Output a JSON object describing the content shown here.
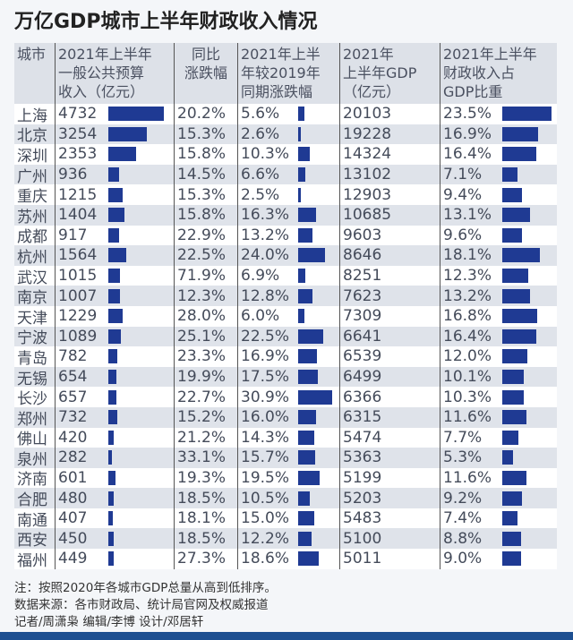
{
  "title": "万亿GDP城市上半年财政收入情况",
  "chart_data": {
    "type": "table",
    "title": "万亿GDP城市上半年财政收入情况",
    "columns": [
      "城市",
      "2021年上半年\n一般公共预算\n收入（亿元）",
      "同比\n涨跌幅",
      "2021年上半\n年较2019年\n同期涨跌幅",
      "2021年\n上半年GDP\n（亿元）",
      "2021年上半年\n财政收入占\nGDP比重"
    ],
    "rows": [
      {
        "city": "上海",
        "revenue": 4732,
        "yoy": "20.2%",
        "vs2019": 5.6,
        "gdp": 20103,
        "share": 23.5
      },
      {
        "city": "北京",
        "revenue": 3254,
        "yoy": "15.3%",
        "vs2019": 2.6,
        "gdp": 19228,
        "share": 16.9
      },
      {
        "city": "深圳",
        "revenue": 2353,
        "yoy": "15.8%",
        "vs2019": 10.3,
        "gdp": 14324,
        "share": 16.4
      },
      {
        "city": "广州",
        "revenue": 936,
        "yoy": "14.5%",
        "vs2019": 6.6,
        "gdp": 13102,
        "share": 7.1
      },
      {
        "city": "重庆",
        "revenue": 1215,
        "yoy": "15.3%",
        "vs2019": 2.5,
        "gdp": 12903,
        "share": 9.4
      },
      {
        "city": "苏州",
        "revenue": 1404,
        "yoy": "15.8%",
        "vs2019": 16.3,
        "gdp": 10685,
        "share": 13.1
      },
      {
        "city": "成都",
        "revenue": 917,
        "yoy": "22.9%",
        "vs2019": 13.2,
        "gdp": 9603,
        "share": 9.6
      },
      {
        "city": "杭州",
        "revenue": 1564,
        "yoy": "22.5%",
        "vs2019": 24.0,
        "gdp": 8646,
        "share": 18.1
      },
      {
        "city": "武汉",
        "revenue": 1015,
        "yoy": "71.9%",
        "vs2019": 6.9,
        "gdp": 8251,
        "share": 12.3
      },
      {
        "city": "南京",
        "revenue": 1007,
        "yoy": "12.3%",
        "vs2019": 12.8,
        "gdp": 7623,
        "share": 13.2
      },
      {
        "city": "天津",
        "revenue": 1229,
        "yoy": "28.0%",
        "vs2019": 6.0,
        "gdp": 7309,
        "share": 16.8
      },
      {
        "city": "宁波",
        "revenue": 1089,
        "yoy": "25.1%",
        "vs2019": 22.5,
        "gdp": 6641,
        "share": 16.4
      },
      {
        "city": "青岛",
        "revenue": 782,
        "yoy": "23.3%",
        "vs2019": 16.9,
        "gdp": 6539,
        "share": 12.0
      },
      {
        "city": "无锡",
        "revenue": 654,
        "yoy": "19.9%",
        "vs2019": 17.5,
        "gdp": 6499,
        "share": 10.1
      },
      {
        "city": "长沙",
        "revenue": 657,
        "yoy": "22.7%",
        "vs2019": 30.9,
        "gdp": 6366,
        "share": 10.3
      },
      {
        "city": "郑州",
        "revenue": 732,
        "yoy": "15.2%",
        "vs2019": 16.0,
        "gdp": 6315,
        "share": 11.6
      },
      {
        "city": "佛山",
        "revenue": 420,
        "yoy": "21.2%",
        "vs2019": 14.3,
        "gdp": 5474,
        "share": 7.7
      },
      {
        "city": "泉州",
        "revenue": 282,
        "yoy": "33.1%",
        "vs2019": 15.7,
        "gdp": 5363,
        "share": 5.3
      },
      {
        "city": "济南",
        "revenue": 601,
        "yoy": "19.3%",
        "vs2019": 19.5,
        "gdp": 5199,
        "share": 11.6
      },
      {
        "city": "合肥",
        "revenue": 480,
        "yoy": "18.5%",
        "vs2019": 10.5,
        "gdp": 5203,
        "share": 9.2
      },
      {
        "city": "南通",
        "revenue": 407,
        "yoy": "18.1%",
        "vs2019": 15.0,
        "gdp": 5483,
        "share": 7.4
      },
      {
        "city": "西安",
        "revenue": 450,
        "yoy": "18.5%",
        "vs2019": 12.2,
        "gdp": 5100,
        "share": 8.8
      },
      {
        "city": "福州",
        "revenue": 449,
        "yoy": "27.3%",
        "vs2019": 18.6,
        "gdp": 5011,
        "share": 9.0
      }
    ],
    "bar_color": "#1f3a93"
  },
  "notes": [
    "注：按照2020年各城市GDP总量从高到低排序。",
    "数据来源：各市财政局、统计局官网及权威报道",
    "记者/周潇枭  编辑/李博  设计/邓居轩"
  ]
}
